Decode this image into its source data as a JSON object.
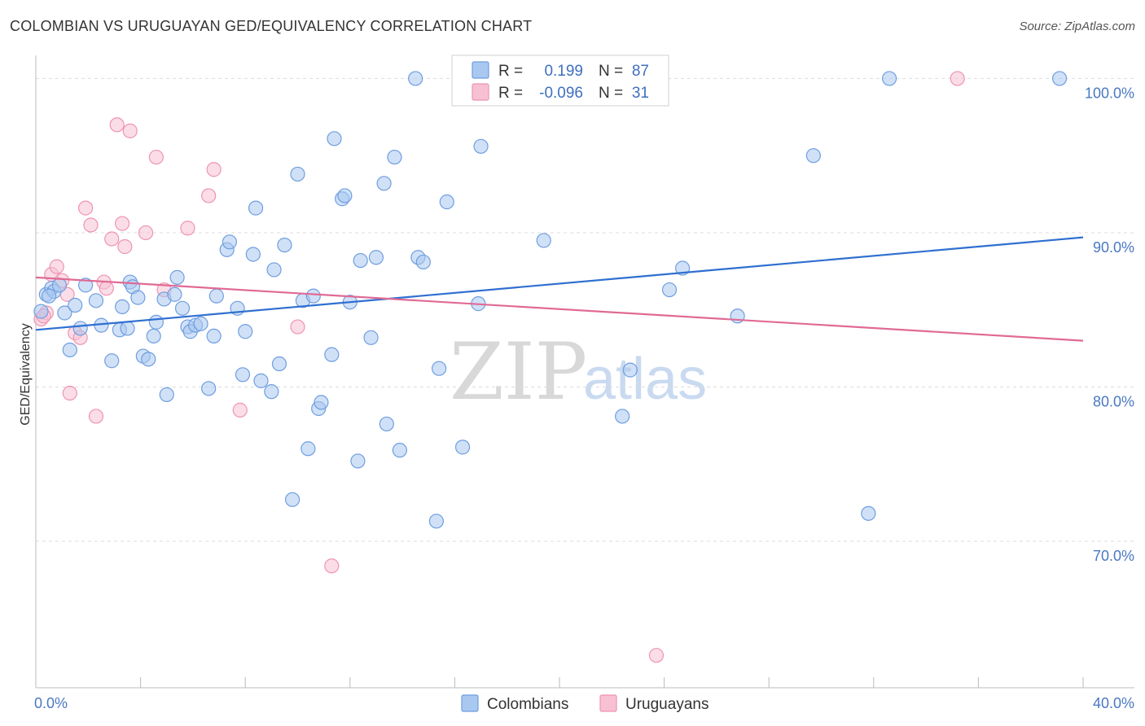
{
  "header": {
    "title": "COLOMBIAN VS URUGUAYAN GED/EQUIVALENCY CORRELATION CHART",
    "source": "Source: ZipAtlas.com"
  },
  "watermark": {
    "zip": "ZIP",
    "atlas": "atlas"
  },
  "legend": {
    "rows": [
      {
        "r_label": "R =",
        "r_value": "0.199",
        "n_label": "N =",
        "n_value": "87",
        "color": "#7aa6e6"
      },
      {
        "r_label": "R =",
        "r_value": "-0.096",
        "n_label": "N =",
        "n_value": "31",
        "color": "#f0a0bc"
      }
    ]
  },
  "bottom_legend": {
    "items": [
      "Colombians",
      "Uruguayans"
    ]
  },
  "colors": {
    "blue_fill": "#a9c8f0",
    "blue_stroke": "#6f9ee0",
    "blue_line": "#2f6fd0",
    "pink_fill": "#f7c1d3",
    "pink_stroke": "#ee94b2",
    "pink_line": "#e06a95",
    "grid": "#dcdcdc",
    "axis": "#bbbbbb"
  },
  "chart_data": {
    "type": "scatter",
    "title": "COLOMBIAN VS URUGUAYAN GED/EQUIVALENCY CORRELATION CHART",
    "xlabel": "",
    "ylabel": "GED/Equivalency",
    "xlim": [
      0,
      40
    ],
    "ylim": [
      60.5,
      101.5
    ],
    "x_tick_labels": [
      "0.0%",
      "40.0%"
    ],
    "y_ticks": [
      70,
      80,
      90,
      100
    ],
    "y_tick_labels": [
      "70.0%",
      "80.0%",
      "90.0%",
      "100.0%"
    ],
    "grid": true,
    "series": [
      {
        "name": "Colombians",
        "R": 0.199,
        "N": 87,
        "trend": {
          "x": [
            0,
            40
          ],
          "y": [
            83.7,
            89.7
          ]
        },
        "points": [
          [
            0.2,
            84.9
          ],
          [
            0.4,
            86.0
          ],
          [
            0.6,
            86.4
          ],
          [
            0.7,
            86.2
          ],
          [
            0.9,
            86.6
          ],
          [
            1.1,
            84.8
          ],
          [
            1.3,
            82.4
          ],
          [
            1.5,
            85.3
          ],
          [
            1.7,
            83.8
          ],
          [
            1.9,
            86.6
          ],
          [
            2.3,
            85.6
          ],
          [
            2.5,
            84.0
          ],
          [
            2.9,
            81.7
          ],
          [
            3.2,
            83.7
          ],
          [
            3.3,
            85.2
          ],
          [
            3.5,
            83.8
          ],
          [
            3.6,
            86.8
          ],
          [
            3.7,
            86.5
          ],
          [
            3.9,
            85.8
          ],
          [
            4.1,
            82.0
          ],
          [
            4.3,
            81.8
          ],
          [
            4.5,
            83.3
          ],
          [
            4.6,
            84.2
          ],
          [
            4.9,
            85.7
          ],
          [
            5.0,
            79.5
          ],
          [
            5.3,
            86.0
          ],
          [
            5.4,
            87.1
          ],
          [
            5.6,
            85.1
          ],
          [
            5.8,
            83.9
          ],
          [
            5.9,
            83.6
          ],
          [
            6.1,
            84.0
          ],
          [
            6.3,
            84.1
          ],
          [
            6.6,
            79.9
          ],
          [
            6.8,
            83.3
          ],
          [
            6.9,
            85.9
          ],
          [
            7.3,
            88.9
          ],
          [
            7.4,
            89.4
          ],
          [
            7.7,
            85.1
          ],
          [
            7.9,
            80.8
          ],
          [
            8.0,
            83.6
          ],
          [
            8.3,
            88.6
          ],
          [
            8.4,
            91.6
          ],
          [
            8.6,
            80.4
          ],
          [
            9.0,
            79.7
          ],
          [
            9.1,
            87.6
          ],
          [
            9.3,
            81.5
          ],
          [
            9.5,
            89.2
          ],
          [
            9.8,
            72.7
          ],
          [
            10.0,
            93.8
          ],
          [
            10.2,
            85.6
          ],
          [
            10.4,
            76.0
          ],
          [
            10.6,
            85.9
          ],
          [
            10.8,
            78.6
          ],
          [
            10.9,
            79.0
          ],
          [
            11.3,
            82.1
          ],
          [
            11.4,
            96.1
          ],
          [
            11.7,
            92.2
          ],
          [
            11.8,
            92.4
          ],
          [
            12.3,
            75.2
          ],
          [
            12.4,
            88.2
          ],
          [
            12.8,
            83.2
          ],
          [
            13.0,
            88.4
          ],
          [
            13.3,
            93.2
          ],
          [
            13.4,
            77.6
          ],
          [
            13.7,
            94.9
          ],
          [
            13.9,
            75.9
          ],
          [
            14.5,
            100.0
          ],
          [
            14.6,
            88.4
          ],
          [
            14.8,
            88.1
          ],
          [
            15.3,
            71.3
          ],
          [
            15.4,
            81.2
          ],
          [
            15.7,
            92.0
          ],
          [
            16.3,
            76.1
          ],
          [
            16.9,
            85.4
          ],
          [
            17.0,
            95.6
          ],
          [
            19.4,
            89.5
          ],
          [
            22.4,
            78.1
          ],
          [
            22.7,
            81.1
          ],
          [
            24.2,
            86.3
          ],
          [
            24.7,
            87.7
          ],
          [
            26.8,
            84.6
          ],
          [
            29.7,
            95.0
          ],
          [
            31.8,
            71.8
          ],
          [
            32.6,
            100.0
          ],
          [
            39.1,
            100.0
          ],
          [
            12.0,
            85.5
          ],
          [
            0.5,
            85.9
          ]
        ]
      },
      {
        "name": "Uruguayans",
        "R": -0.096,
        "N": 31,
        "trend": {
          "x": [
            0,
            40
          ],
          "y": [
            87.1,
            83.0
          ]
        },
        "points": [
          [
            0.2,
            84.4
          ],
          [
            0.4,
            84.8
          ],
          [
            0.6,
            87.3
          ],
          [
            0.8,
            87.8
          ],
          [
            1.0,
            86.9
          ],
          [
            1.2,
            86.0
          ],
          [
            1.3,
            79.6
          ],
          [
            1.5,
            83.5
          ],
          [
            1.7,
            83.2
          ],
          [
            1.9,
            91.6
          ],
          [
            2.1,
            90.5
          ],
          [
            2.3,
            78.1
          ],
          [
            2.6,
            86.8
          ],
          [
            2.7,
            86.4
          ],
          [
            2.9,
            89.6
          ],
          [
            3.1,
            97.0
          ],
          [
            3.3,
            90.6
          ],
          [
            3.4,
            89.1
          ],
          [
            3.6,
            96.6
          ],
          [
            4.2,
            90.0
          ],
          [
            4.6,
            94.9
          ],
          [
            4.9,
            86.3
          ],
          [
            5.8,
            90.3
          ],
          [
            6.6,
            92.4
          ],
          [
            6.8,
            94.1
          ],
          [
            7.8,
            78.5
          ],
          [
            10.0,
            83.9
          ],
          [
            11.3,
            68.4
          ],
          [
            23.7,
            62.6
          ],
          [
            35.2,
            100.0
          ],
          [
            0.3,
            84.6
          ]
        ]
      }
    ]
  }
}
